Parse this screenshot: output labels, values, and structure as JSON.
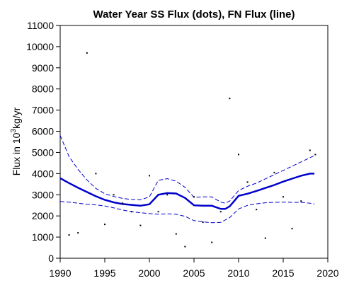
{
  "chart_data": {
    "type": "scatter",
    "title": "Water Year SS Flux (dots), FN Flux (line)",
    "ylabel": {
      "prefix": "Flux in 10",
      "sup": "3",
      "suffix": "kg/yr"
    },
    "xlabel": "",
    "xlim": [
      1990,
      2020
    ],
    "ylim": [
      0,
      11000
    ],
    "x_ticks": [
      "1990",
      "1995",
      "2000",
      "2005",
      "2010",
      "2015",
      "2020"
    ],
    "y_ticks": [
      "0",
      "1000",
      "2000",
      "3000",
      "4000",
      "5000",
      "6000",
      "7000",
      "8000",
      "9000",
      "10000",
      "11000"
    ],
    "grid": false,
    "colors": {
      "line": "#0000cc",
      "band": "#0000cc",
      "points": "#000000"
    },
    "points": [
      {
        "x": 1991,
        "y": 1100
      },
      {
        "x": 1992,
        "y": 1200
      },
      {
        "x": 1993,
        "y": 9700
      },
      {
        "x": 1994,
        "y": 4000
      },
      {
        "x": 1995,
        "y": 1600
      },
      {
        "x": 1996,
        "y": 3000
      },
      {
        "x": 1997,
        "y": 2600
      },
      {
        "x": 1998,
        "y": 2200
      },
      {
        "x": 1999,
        "y": 1550
      },
      {
        "x": 2000,
        "y": 3900
      },
      {
        "x": 2001,
        "y": 2200
      },
      {
        "x": 2002,
        "y": 3000
      },
      {
        "x": 2003,
        "y": 1150
      },
      {
        "x": 2004,
        "y": 550
      },
      {
        "x": 2005,
        "y": 2900
      },
      {
        "x": 2006,
        "y": 1700
      },
      {
        "x": 2007,
        "y": 750
      },
      {
        "x": 2008,
        "y": 2200
      },
      {
        "x": 2009,
        "y": 7550
      },
      {
        "x": 2010,
        "y": 4900
      },
      {
        "x": 2011,
        "y": 3600
      },
      {
        "x": 2012,
        "y": 2300
      },
      {
        "x": 2013,
        "y": 950
      },
      {
        "x": 2014,
        "y": 4050
      },
      {
        "x": 2015,
        "y": 2900
      },
      {
        "x": 2016,
        "y": 1400
      },
      {
        "x": 2017,
        "y": 2700
      },
      {
        "x": 2018,
        "y": 5100
      },
      {
        "x": 2018.6,
        "y": 4900
      }
    ],
    "series": [
      {
        "role": "fn-flux",
        "style": "solid",
        "x": [
          1990,
          1991,
          1992,
          1993,
          1994,
          1995,
          1996,
          1997,
          1998,
          1999,
          2000,
          2001,
          2002,
          2003,
          2004,
          2005,
          2006,
          2007,
          2008,
          2008.5,
          2009,
          2010,
          2011,
          2012,
          2013,
          2014,
          2015,
          2016,
          2017,
          2018,
          2018.5
        ],
        "y": [
          3780,
          3550,
          3330,
          3130,
          2930,
          2760,
          2640,
          2560,
          2520,
          2480,
          2550,
          3000,
          3080,
          3060,
          2850,
          2500,
          2480,
          2480,
          2330,
          2330,
          2450,
          2950,
          3050,
          3180,
          3320,
          3460,
          3620,
          3760,
          3900,
          4000,
          4000
        ]
      },
      {
        "role": "upper-band",
        "style": "dashed",
        "x": [
          1990,
          1991,
          1992,
          1993,
          1994,
          1995,
          1996,
          1997,
          1998,
          1999,
          2000,
          2001,
          2002,
          2003,
          2004,
          2005,
          2006,
          2007,
          2008,
          2008.5,
          2009,
          2010,
          2011,
          2012,
          2013,
          2014,
          2015,
          2016,
          2017,
          2018,
          2018.5
        ],
        "y": [
          5800,
          4800,
          4200,
          3700,
          3300,
          3050,
          2920,
          2830,
          2780,
          2760,
          2900,
          3680,
          3760,
          3640,
          3350,
          2880,
          2900,
          2900,
          2650,
          2600,
          2700,
          3200,
          3400,
          3550,
          3750,
          3950,
          4150,
          4350,
          4550,
          4750,
          4850
        ]
      },
      {
        "role": "lower-band",
        "style": "dashed",
        "x": [
          1990,
          1991,
          1992,
          1993,
          1994,
          1995,
          1996,
          1997,
          1998,
          1999,
          2000,
          2001,
          2002,
          2003,
          2004,
          2005,
          2006,
          2007,
          2008,
          2009,
          2010,
          2011,
          2012,
          2013,
          2014,
          2015,
          2016,
          2017,
          2018,
          2018.5
        ],
        "y": [
          2680,
          2650,
          2600,
          2550,
          2520,
          2470,
          2380,
          2280,
          2200,
          2150,
          2110,
          2080,
          2100,
          2080,
          1980,
          1780,
          1720,
          1680,
          1700,
          1920,
          2330,
          2500,
          2570,
          2620,
          2640,
          2650,
          2640,
          2640,
          2600,
          2560
        ]
      }
    ]
  }
}
